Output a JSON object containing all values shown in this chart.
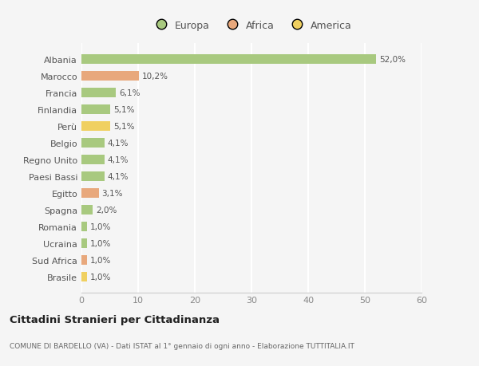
{
  "countries": [
    "Albania",
    "Marocco",
    "Francia",
    "Finlandia",
    "Perù",
    "Belgio",
    "Regno Unito",
    "Paesi Bassi",
    "Egitto",
    "Spagna",
    "Romania",
    "Ucraina",
    "Sud Africa",
    "Brasile"
  ],
  "values": [
    52.0,
    10.2,
    6.1,
    5.1,
    5.1,
    4.1,
    4.1,
    4.1,
    3.1,
    2.0,
    1.0,
    1.0,
    1.0,
    1.0
  ],
  "labels": [
    "52,0%",
    "10,2%",
    "6,1%",
    "5,1%",
    "5,1%",
    "4,1%",
    "4,1%",
    "4,1%",
    "3,1%",
    "2,0%",
    "1,0%",
    "1,0%",
    "1,0%",
    "1,0%"
  ],
  "continents": [
    "Europa",
    "Africa",
    "Europa",
    "Europa",
    "America",
    "Europa",
    "Europa",
    "Europa",
    "Africa",
    "Europa",
    "Europa",
    "Europa",
    "Africa",
    "America"
  ],
  "colors": {
    "Europa": "#a8c97f",
    "Africa": "#e8a87c",
    "America": "#f0d060"
  },
  "title": "Cittadini Stranieri per Cittadinanza",
  "subtitle": "COMUNE DI BARDELLO (VA) - Dati ISTAT al 1° gennaio di ogni anno - Elaborazione TUTTITALIA.IT",
  "xlim": [
    0,
    60
  ],
  "xticks": [
    0,
    10,
    20,
    30,
    40,
    50,
    60
  ],
  "background_color": "#f5f5f5",
  "grid_color": "#ffffff",
  "bar_height": 0.55
}
